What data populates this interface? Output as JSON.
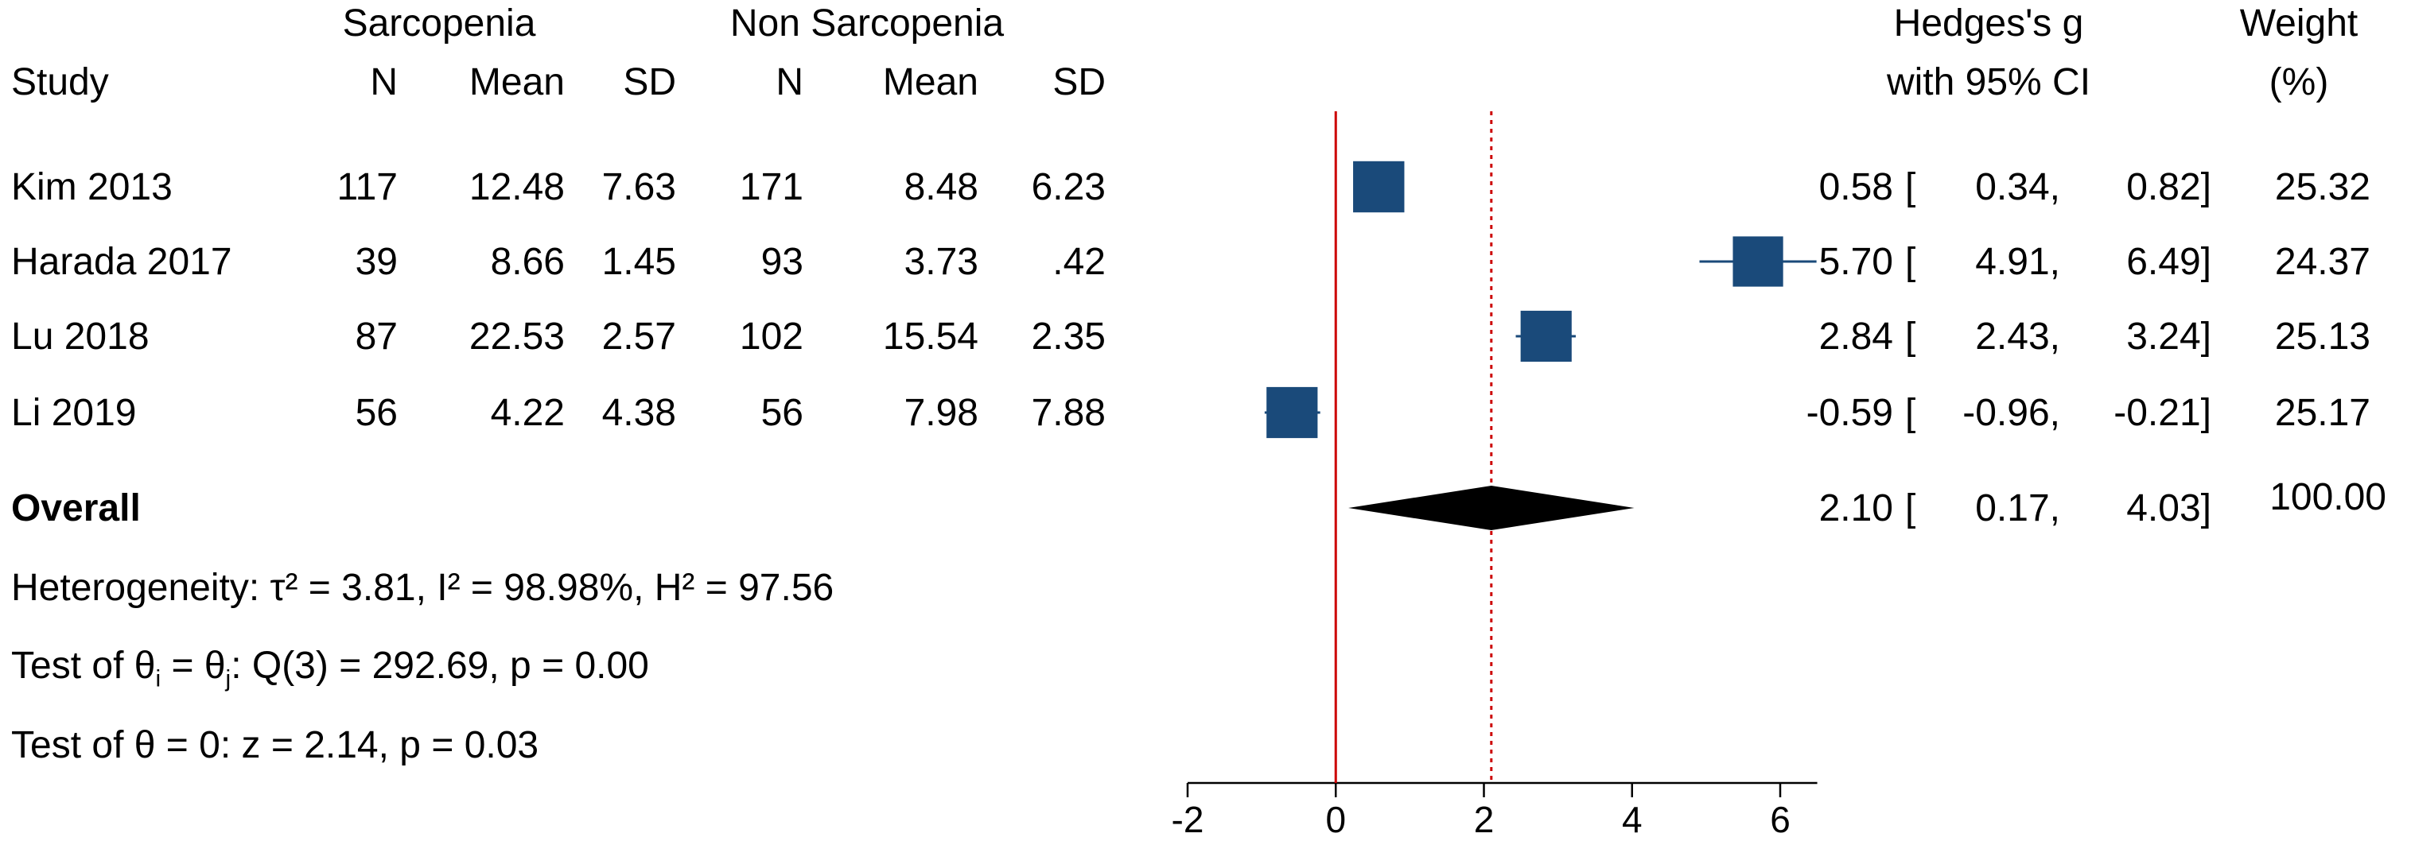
{
  "header": {
    "group1": "Sarcopenia",
    "group2": "Non Sarcopenia",
    "study": "Study",
    "n": "N",
    "mean": "Mean",
    "sd": "SD",
    "effect_line1": "Hedges's g",
    "effect_line2": "with 95% CI",
    "weight_line1": "Weight",
    "weight_line2": "(%)"
  },
  "studies": [
    {
      "name": "Kim 2013",
      "n1": "117",
      "mean1": "12.48",
      "sd1": "7.63",
      "n2": "171",
      "mean2": "8.48",
      "sd2": "6.23",
      "g": "0.58",
      "lo": "0.34,",
      "hi": "0.82]",
      "weight": "25.32"
    },
    {
      "name": "Harada 2017",
      "n1": "39",
      "mean1": "8.66",
      "sd1": "1.45",
      "n2": "93",
      "mean2": "3.73",
      "sd2": ".42",
      "g": "5.70",
      "lo": "4.91,",
      "hi": "6.49]",
      "weight": "24.37"
    },
    {
      "name": "Lu 2018",
      "n1": "87",
      "mean1": "22.53",
      "sd1": "2.57",
      "n2": "102",
      "mean2": "15.54",
      "sd2": "2.35",
      "g": "2.84",
      "lo": "2.43,",
      "hi": "3.24]",
      "weight": "25.13"
    },
    {
      "name": "Li 2019",
      "n1": "56",
      "mean1": "4.22",
      "sd1": "4.38",
      "n2": "56",
      "mean2": "7.98",
      "sd2": "7.88",
      "g": "-0.59",
      "lo": "-0.96,",
      "hi": "-0.21]",
      "weight": "25.17"
    }
  ],
  "overall": {
    "label": "Overall",
    "g": "2.10",
    "lo": "0.17,",
    "hi": "4.03]",
    "weight": "100.00"
  },
  "stats": {
    "heterogeneity": "Heterogeneity: τ² = 3.81, I² = 98.98%, H² = 97.56",
    "test_ij_prefix": "Test of θ",
    "test_ij_sub_i": "i",
    "test_ij_mid": " = θ",
    "test_ij_sub_j": "j",
    "test_ij_suffix": ": Q(3) = 292.69, p = 0.00",
    "test_zero": "Test of θ = 0: z = 2.14, p = 0.03"
  },
  "bracket": "[",
  "colors": {
    "marker": "#1a4a7a",
    "null_line": "#cc0000",
    "overall_line": "#cc0000",
    "diamond": "#000000"
  },
  "chart_data": {
    "type": "forest",
    "xlim": [
      -2,
      6.5
    ],
    "xticks": [
      -2,
      0,
      2,
      4,
      6
    ],
    "null_value": 0,
    "overall_reference": 2.1,
    "studies": [
      {
        "name": "Kim 2013",
        "g": 0.58,
        "lo": 0.34,
        "hi": 0.82,
        "weight": 25.32
      },
      {
        "name": "Harada 2017",
        "g": 5.7,
        "lo": 4.91,
        "hi": 6.49,
        "weight": 24.37
      },
      {
        "name": "Lu 2018",
        "g": 2.84,
        "lo": 2.43,
        "hi": 3.24,
        "weight": 25.13
      },
      {
        "name": "Li 2019",
        "g": -0.59,
        "lo": -0.96,
        "hi": -0.21,
        "weight": 25.17
      }
    ],
    "overall": {
      "g": 2.1,
      "lo": 0.17,
      "hi": 4.03
    }
  }
}
